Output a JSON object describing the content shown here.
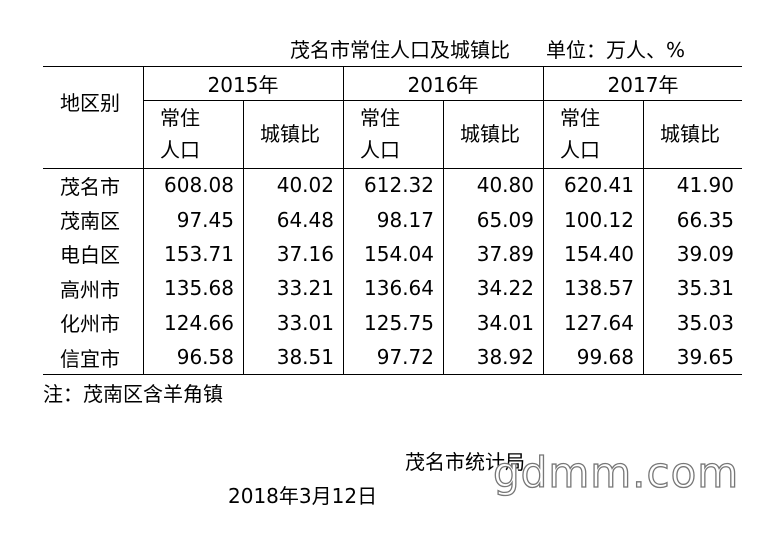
{
  "header": {
    "title": "茂名市常住人口及城镇比",
    "unit": "单位：万人、%"
  },
  "table": {
    "corner": "地区别",
    "years": [
      "2015年",
      "2016年",
      "2017年"
    ],
    "subheaders": [
      "常住人口",
      "城镇比"
    ],
    "rows": [
      {
        "region": "茂名市",
        "values": [
          "608.08",
          "40.02",
          "612.32",
          "40.80",
          "620.41",
          "41.90"
        ]
      },
      {
        "region": "茂南区",
        "values": [
          "97.45",
          "64.48",
          "98.17",
          "65.09",
          "100.12",
          "66.35"
        ]
      },
      {
        "region": "电白区",
        "values": [
          "153.71",
          "37.16",
          "154.04",
          "37.89",
          "154.40",
          "39.09"
        ]
      },
      {
        "region": "高州市",
        "values": [
          "135.68",
          "33.21",
          "136.64",
          "34.22",
          "138.57",
          "35.31"
        ]
      },
      {
        "region": "化州市",
        "values": [
          "124.66",
          "33.01",
          "125.75",
          "34.01",
          "127.64",
          "35.03"
        ]
      },
      {
        "region": "信宜市",
        "values": [
          "96.58",
          "38.51",
          "97.72",
          "38.92",
          "99.68",
          "39.65"
        ]
      }
    ]
  },
  "footnote": "注：茂南区含羊角镇",
  "signature": "茂名市统计局",
  "date": "2018年3月12日",
  "watermark": "gdmm.com"
}
